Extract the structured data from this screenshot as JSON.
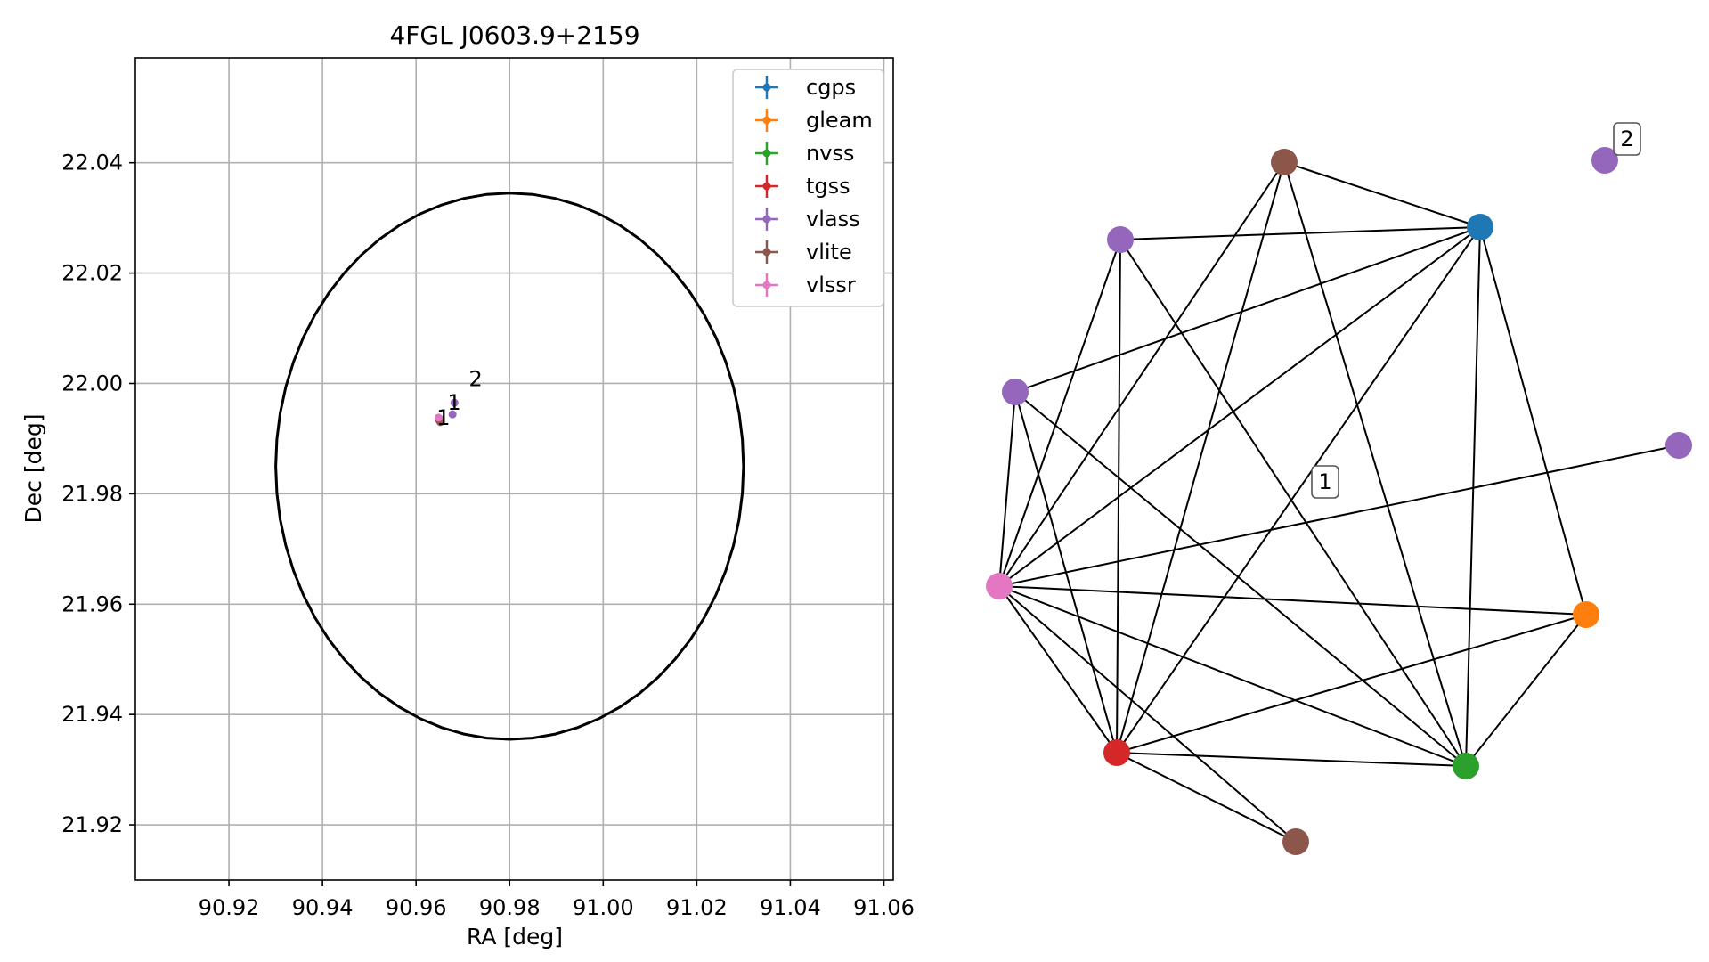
{
  "chart_data": [
    {
      "type": "scatter",
      "title": "4FGL J0603.9+2159",
      "xlabel": "RA [deg]",
      "ylabel": "Dec [deg]",
      "xlim": [
        90.9,
        91.062
      ],
      "ylim": [
        21.91,
        22.059
      ],
      "xticks": [
        90.92,
        90.94,
        90.96,
        90.98,
        91.0,
        91.02,
        91.04,
        91.06
      ],
      "xtick_labels": [
        "90.92",
        "90.94",
        "90.96",
        "90.98",
        "91.00",
        "91.02",
        "91.04",
        "91.06"
      ],
      "yticks": [
        21.92,
        21.94,
        21.96,
        21.98,
        22.0,
        22.02,
        22.04
      ],
      "ytick_labels": [
        "21.92",
        "21.94",
        "21.96",
        "21.98",
        "22.00",
        "22.02",
        "22.04"
      ],
      "grid": true,
      "legend_position": "top-right",
      "error_ellipse": {
        "center": [
          90.98,
          21.985
        ],
        "semi_major_ra": 0.05,
        "semi_major_dec": 0.0495
      },
      "series": [
        {
          "name": "cgps",
          "color": "#1f77b4",
          "points": [
            [
              90.9652,
              21.9935
            ]
          ]
        },
        {
          "name": "gleam",
          "color": "#ff7f0e",
          "points": [
            [
              90.9651,
              21.9934
            ]
          ]
        },
        {
          "name": "nvss",
          "color": "#2ca02c",
          "points": [
            [
              90.9651,
              21.9933
            ]
          ]
        },
        {
          "name": "tgss",
          "color": "#d62728",
          "points": [
            [
              90.9649,
              21.9934
            ]
          ]
        },
        {
          "name": "vlass",
          "color": "#9467bd",
          "points": [
            [
              90.9678,
              21.9944
            ],
            [
              90.9682,
              21.9965
            ]
          ]
        },
        {
          "name": "vlite",
          "color": "#8c564b",
          "points": [
            [
              90.9652,
              21.993
            ]
          ]
        },
        {
          "name": "vlssr",
          "color": "#e377c2",
          "points": [
            [
              90.9648,
              21.9938
            ]
          ]
        }
      ],
      "annotations": [
        {
          "text": "1",
          "x": 90.9667,
          "y": 21.9952
        },
        {
          "text": "1",
          "x": 90.9644,
          "y": 21.9925
        },
        {
          "text": "2",
          "x": 90.9713,
          "y": 21.9995
        }
      ]
    },
    {
      "type": "network",
      "nodes": [
        {
          "id": "vlite_top",
          "color": "#8c564b"
        },
        {
          "id": "vlass_a",
          "color": "#9467bd"
        },
        {
          "id": "cgps",
          "color": "#1f77b4"
        },
        {
          "id": "vlass_b",
          "color": "#9467bd"
        },
        {
          "id": "vlass_c",
          "color": "#9467bd"
        },
        {
          "id": "vlassr",
          "color": "#e377c2"
        },
        {
          "id": "gleam",
          "color": "#ff7f0e"
        },
        {
          "id": "tgss",
          "color": "#d62728"
        },
        {
          "id": "nvss",
          "color": "#2ca02c"
        },
        {
          "id": "vlite_bottom",
          "color": "#8c564b"
        },
        {
          "id": "vlass_d",
          "color": "#9467bd"
        }
      ],
      "edges": [
        [
          "vlite_top",
          "cgps"
        ],
        [
          "vlite_top",
          "vlassr"
        ],
        [
          "vlite_top",
          "tgss"
        ],
        [
          "vlite_top",
          "nvss"
        ],
        [
          "vlass_a",
          "cgps"
        ],
        [
          "vlass_a",
          "vlassr"
        ],
        [
          "vlass_a",
          "tgss"
        ],
        [
          "vlass_a",
          "nvss"
        ],
        [
          "cgps",
          "vlass_b"
        ],
        [
          "cgps",
          "vlassr"
        ],
        [
          "cgps",
          "tgss"
        ],
        [
          "cgps",
          "nvss"
        ],
        [
          "cgps",
          "gleam"
        ],
        [
          "vlass_b",
          "vlassr"
        ],
        [
          "vlass_b",
          "tgss"
        ],
        [
          "vlass_b",
          "nvss"
        ],
        [
          "vlassr",
          "vlass_c"
        ],
        [
          "vlassr",
          "gleam"
        ],
        [
          "vlassr",
          "tgss"
        ],
        [
          "vlassr",
          "nvss"
        ],
        [
          "vlassr",
          "vlite_bottom"
        ],
        [
          "gleam",
          "tgss"
        ],
        [
          "gleam",
          "nvss"
        ],
        [
          "tgss",
          "nvss"
        ],
        [
          "tgss",
          "vlite_bottom"
        ]
      ],
      "labels": [
        {
          "text": "1",
          "near": "center"
        },
        {
          "text": "2",
          "near": "vlass_d"
        }
      ]
    }
  ]
}
